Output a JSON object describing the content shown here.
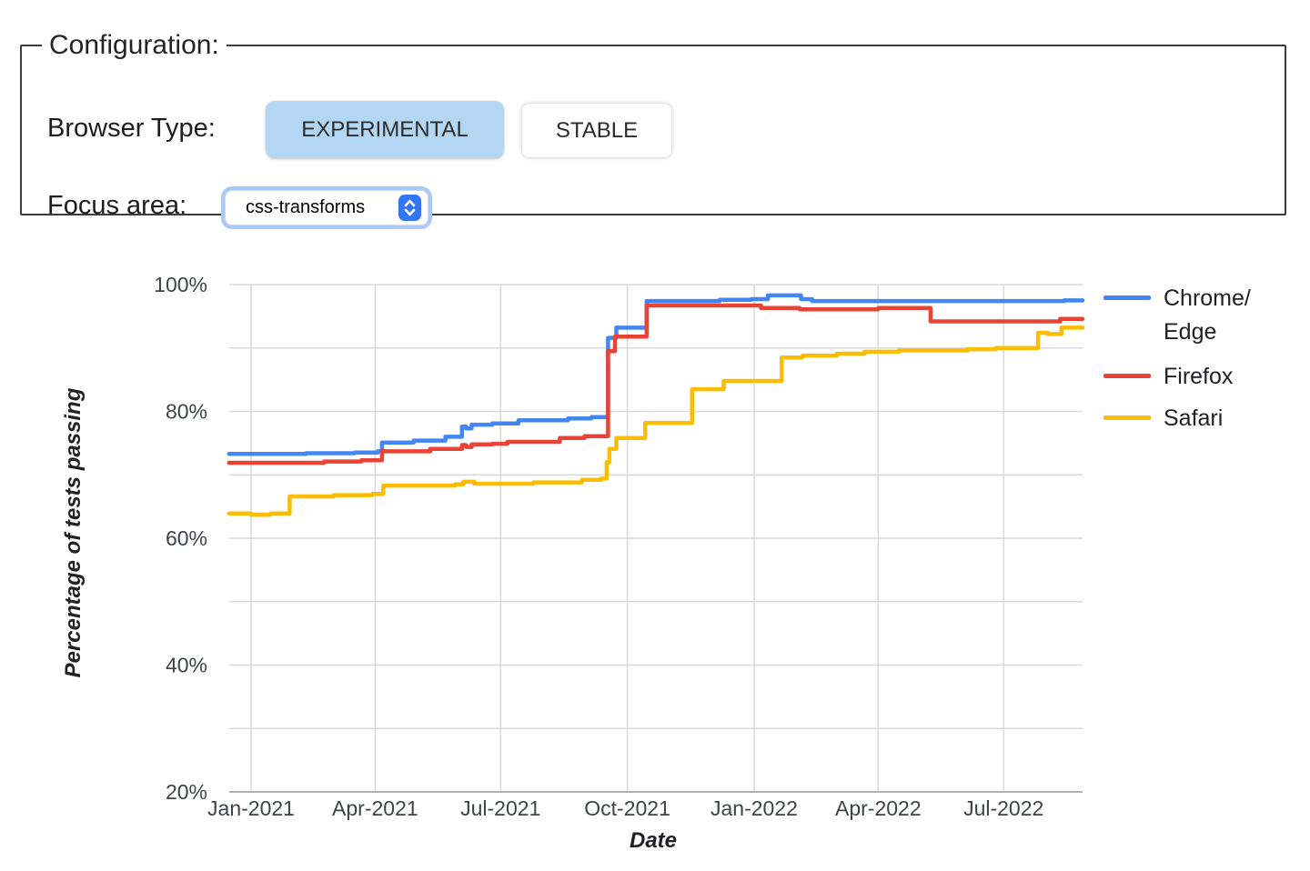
{
  "config": {
    "legend": "Configuration:",
    "browser_type_label": "Browser Type:",
    "buttons": [
      {
        "label": "EXPERIMENTAL",
        "selected": true
      },
      {
        "label": "STABLE",
        "selected": false
      }
    ],
    "selected_button_bg": "#b3d7f2",
    "focus_area_label": "Focus area:",
    "focus_area_value": "css-transforms"
  },
  "chart_data": {
    "type": "line",
    "title": "",
    "xlabel": "Date",
    "ylabel": "Percentage of tests passing",
    "x_unit": "days since 2021-01-01",
    "x_range_days": [
      -16,
      603
    ],
    "ylim": [
      20,
      100
    ],
    "grid": {
      "color": "#d9d9d9",
      "y_lines": [
        20,
        30,
        40,
        50,
        60,
        70,
        80,
        90,
        100
      ]
    },
    "axis_line_color": "#b0b0b0",
    "y_ticks": [
      {
        "value": 20,
        "label": "20%"
      },
      {
        "value": 40,
        "label": "40%"
      },
      {
        "value": 60,
        "label": "60%"
      },
      {
        "value": 80,
        "label": "80%"
      },
      {
        "value": 100,
        "label": "100%"
      }
    ],
    "x_ticks": [
      {
        "day": 0,
        "label": "Jan-2021"
      },
      {
        "day": 90,
        "label": "Apr-2021"
      },
      {
        "day": 181,
        "label": "Jul-2021"
      },
      {
        "day": 273,
        "label": "Oct-2021"
      },
      {
        "day": 365,
        "label": "Jan-2022"
      },
      {
        "day": 455,
        "label": "Apr-2022"
      },
      {
        "day": 546,
        "label": "Jul-2022"
      }
    ],
    "legend_position": "right",
    "series": [
      {
        "id": "chrome-edge",
        "name": "Chrome/Edge",
        "color": "#4285F4",
        "interpolation": "step-after",
        "points": [
          [
            -16,
            73.3
          ],
          [
            40,
            73.4
          ],
          [
            75,
            73.5
          ],
          [
            92,
            73.7
          ],
          [
            95,
            75.1
          ],
          [
            118,
            75.4
          ],
          [
            141,
            76.0
          ],
          [
            153,
            77.6
          ],
          [
            156,
            77.3
          ],
          [
            160,
            77.9
          ],
          [
            175,
            78.1
          ],
          [
            194,
            78.6
          ],
          [
            230,
            78.9
          ],
          [
            247,
            79.1
          ],
          [
            259,
            91.6
          ],
          [
            265,
            93.2
          ],
          [
            287,
            97.4
          ],
          [
            340,
            97.6
          ],
          [
            363,
            97.7
          ],
          [
            375,
            98.3
          ],
          [
            399,
            97.7
          ],
          [
            407,
            97.4
          ],
          [
            590,
            97.5
          ],
          [
            603,
            97.5
          ]
        ]
      },
      {
        "id": "firefox",
        "name": "Firefox",
        "color": "#EA4335",
        "interpolation": "step-after",
        "points": [
          [
            -16,
            71.9
          ],
          [
            53,
            72.1
          ],
          [
            80,
            72.3
          ],
          [
            95,
            73.7
          ],
          [
            130,
            74.1
          ],
          [
            153,
            74.7
          ],
          [
            156,
            74.4
          ],
          [
            160,
            74.8
          ],
          [
            175,
            74.9
          ],
          [
            186,
            75.2
          ],
          [
            224,
            75.8
          ],
          [
            242,
            76.1
          ],
          [
            259,
            89.5
          ],
          [
            264,
            91.8
          ],
          [
            287,
            96.7
          ],
          [
            370,
            96.3
          ],
          [
            398,
            96.1
          ],
          [
            425,
            96.1
          ],
          [
            455,
            96.3
          ],
          [
            493,
            94.2
          ],
          [
            587,
            94.6
          ],
          [
            603,
            94.6
          ]
        ]
      },
      {
        "id": "safari",
        "name": "Safari",
        "color": "#FBBC04",
        "interpolation": "step-after",
        "points": [
          [
            -16,
            63.9
          ],
          [
            0,
            63.7
          ],
          [
            14,
            63.9
          ],
          [
            28,
            66.6
          ],
          [
            60,
            66.8
          ],
          [
            88,
            67.0
          ],
          [
            96,
            68.3
          ],
          [
            148,
            68.5
          ],
          [
            154,
            68.9
          ],
          [
            162,
            68.6
          ],
          [
            205,
            68.8
          ],
          [
            240,
            69.2
          ],
          [
            254,
            69.4
          ],
          [
            258,
            72.0
          ],
          [
            260,
            74.1
          ],
          [
            265,
            75.8
          ],
          [
            286,
            78.2
          ],
          [
            320,
            83.5
          ],
          [
            343,
            84.8
          ],
          [
            385,
            88.5
          ],
          [
            400,
            88.8
          ],
          [
            425,
            89.1
          ],
          [
            445,
            89.4
          ],
          [
            470,
            89.6
          ],
          [
            520,
            89.8
          ],
          [
            540,
            90.0
          ],
          [
            571,
            92.4
          ],
          [
            578,
            92.2
          ],
          [
            588,
            93.2
          ],
          [
            603,
            93.2
          ]
        ]
      }
    ]
  },
  "legend": {
    "items": [
      {
        "line1": "Chrome/",
        "line2": "Edge"
      },
      {
        "line1": "Firefox",
        "line2": ""
      },
      {
        "line1": "Safari",
        "line2": ""
      }
    ]
  }
}
